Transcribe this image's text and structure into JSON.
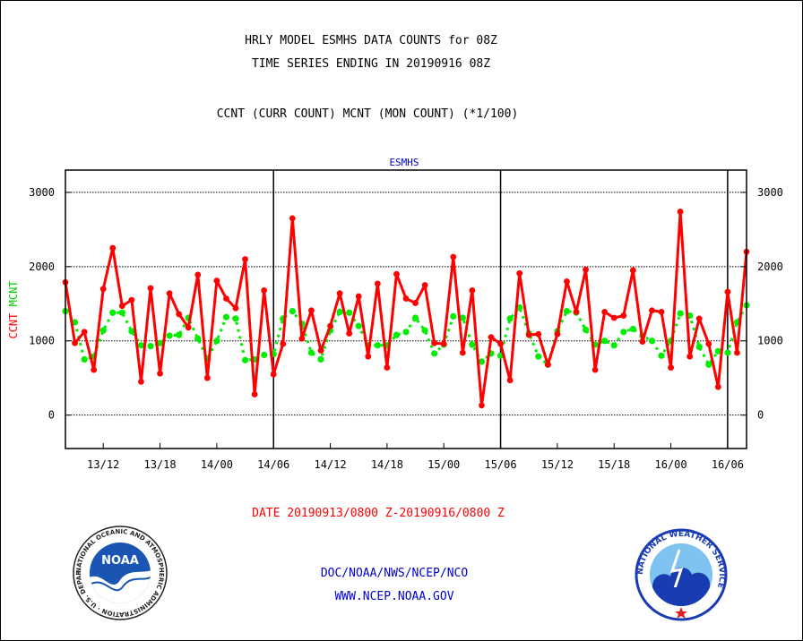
{
  "header": {
    "line1": "HRLY MODEL ESMHS DATA COUNTS for 08Z",
    "line2": "TIME SERIES ENDING IN 20190916 08Z",
    "line3": "CCNT (CURR COUNT) MCNT (MON COUNT) (*1/100)"
  },
  "footer": {
    "date_range": "DATE 20190913/0800 Z-20190916/0800 Z",
    "org": "DOC/NOAA/NWS/NCEP/NCO",
    "url": "WWW.NCEP.NOAA.GOV"
  },
  "logos": {
    "noaa_text": "NOAA",
    "noaa_ring": "NATIONAL OCEANIC AND ATMOSPHERIC ADMINISTRATION · U.S. DEPARTMENT OF COMMERCE ·",
    "nws_ring": "NATIONAL WEATHER SERVICE"
  },
  "colors": {
    "ccnt": "#ff0000",
    "mcnt": "#00ee00",
    "subtitle": "#0000cc"
  },
  "chart_data": {
    "type": "line",
    "title": "ESMHS",
    "ylabel_parts": [
      {
        "text": "CCNT",
        "color": "#ff0000"
      },
      {
        "text": "MCNT",
        "color": "#00cc00"
      }
    ],
    "ylim": [
      -450,
      3300
    ],
    "yticks": [
      0,
      1000,
      2000,
      3000
    ],
    "xlim": [
      0,
      72
    ],
    "xticks": [
      {
        "x": 4,
        "label": "13/12"
      },
      {
        "x": 10,
        "label": "13/18"
      },
      {
        "x": 16,
        "label": "14/00"
      },
      {
        "x": 22,
        "label": "14/06"
      },
      {
        "x": 28,
        "label": "14/12"
      },
      {
        "x": 34,
        "label": "14/18"
      },
      {
        "x": 40,
        "label": "15/00"
      },
      {
        "x": 46,
        "label": "15/06"
      },
      {
        "x": 52,
        "label": "15/12"
      },
      {
        "x": 58,
        "label": "15/18"
      },
      {
        "x": 64,
        "label": "16/00"
      },
      {
        "x": 70,
        "label": "16/06"
      }
    ],
    "day_boundaries": [
      22,
      46,
      70
    ],
    "grid": true,
    "series": [
      {
        "name": "CCNT",
        "color": "#ff0000",
        "values": [
          1790,
          970,
          1120,
          610,
          1700,
          2250,
          1470,
          1550,
          450,
          1710,
          560,
          1640,
          1360,
          1180,
          1890,
          500,
          1810,
          1570,
          1440,
          2100,
          280,
          1680,
          550,
          960,
          2650,
          1030,
          1410,
          870,
          1200,
          1640,
          1100,
          1600,
          790,
          1770,
          640,
          1900,
          1570,
          1510,
          1750,
          970,
          960,
          2130,
          840,
          1680,
          130,
          1050,
          960,
          470,
          1910,
          1080,
          1090,
          680,
          1090,
          1800,
          1390,
          1960,
          610,
          1390,
          1310,
          1340,
          1950,
          990,
          1410,
          1390,
          640,
          2740,
          790,
          1300,
          960,
          380,
          1660,
          840,
          2200
        ]
      },
      {
        "name": "MCNT",
        "color": "#00ee00",
        "values": [
          1400,
          1250,
          750,
          790,
          1140,
          1380,
          1380,
          1130,
          940,
          930,
          970,
          1070,
          1080,
          1310,
          1030,
          760,
          1000,
          1320,
          1300,
          740,
          750,
          810,
          820,
          1300,
          1400,
          1230,
          840,
          750,
          1140,
          1390,
          1380,
          1200,
          940,
          940,
          940,
          1080,
          1120,
          1310,
          1140,
          830,
          950,
          1330,
          1310,
          950,
          720,
          830,
          800,
          1300,
          1450,
          1100,
          790,
          680,
          1130,
          1400,
          1380,
          1150,
          950,
          1000,
          940,
          1120,
          1160,
          1070,
          1000,
          800,
          1000,
          1370,
          1340,
          920,
          680,
          860,
          840,
          1250,
          1480
        ]
      }
    ]
  }
}
